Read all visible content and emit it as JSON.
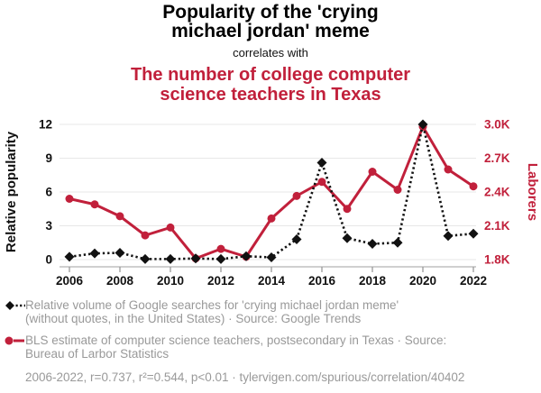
{
  "header": {
    "title_lines": [
      "Popularity of the 'crying",
      "michael jordan' meme"
    ],
    "connector": "correlates with",
    "subtitle_lines": [
      "The number of college computer",
      "science teachers in Texas"
    ]
  },
  "chart_data": {
    "type": "line",
    "x": [
      2006,
      2007,
      2008,
      2009,
      2010,
      2011,
      2012,
      2013,
      2014,
      2015,
      2016,
      2017,
      2018,
      2019,
      2020,
      2021,
      2022
    ],
    "x_tick_labels": [
      "2006",
      "2008",
      "2010",
      "2012",
      "2014",
      "2016",
      "2018",
      "2020",
      "2022"
    ],
    "series": [
      {
        "name": "Relative volume of Google searches for 'crying michael jordan meme'",
        "axis": "right2",
        "style": "dotted-diamond",
        "color": "#111111",
        "values": [
          0.25,
          0.55,
          0.6,
          0.05,
          0.05,
          0.1,
          0.05,
          0.3,
          0.2,
          1.8,
          8.6,
          1.9,
          1.4,
          1.5,
          12,
          2.1,
          2.3
        ]
      },
      {
        "name": "BLS estimate of computer science teachers, postsecondary in Texas",
        "axis": "right",
        "style": "solid-circle",
        "color": "#c1203b",
        "values": [
          2340,
          2290,
          2185,
          2015,
          2085,
          1810,
          1895,
          1825,
          2165,
          2365,
          2490,
          2250,
          2580,
          2420,
          2980,
          2600,
          2450
        ]
      }
    ],
    "left_axis": {
      "label": "Relative popularity",
      "ticks": [
        0,
        3,
        6,
        9,
        12
      ],
      "range": [
        0,
        12
      ]
    },
    "right_axis": {
      "label": "Laborers",
      "tick_labels": [
        "1.8K",
        "2.1K",
        "2.4K",
        "2.7K",
        "3.0K"
      ],
      "tick_values": [
        1800,
        2100,
        2400,
        2700,
        3000
      ],
      "range": [
        1800,
        3000
      ]
    },
    "grid": true,
    "legend_position": "bottom"
  },
  "footer": {
    "legend": [
      {
        "marker": "black-diamond-dotted",
        "lines": [
          "Relative volume of Google searches for 'crying michael jordan meme'",
          "(without quotes, in the United States) · Source: Google Trends"
        ]
      },
      {
        "marker": "red-circle-line",
        "lines": [
          "BLS estimate of computer science teachers, postsecondary in Texas · Source:",
          "Bureau of Larbor Statistics"
        ]
      }
    ],
    "stats": "2006-2022, r=0.737, r²=0.544, p<0.01 · tylervigen.com/spurious/correlation/40402"
  },
  "colors": {
    "accent_red": "#c1203b",
    "series_black": "#111111",
    "grid": "#e7e7e7",
    "axis_line": "#b5b5b5",
    "tick_mark": "#999999",
    "tick_text": "#111111",
    "muted_text": "#999999"
  }
}
